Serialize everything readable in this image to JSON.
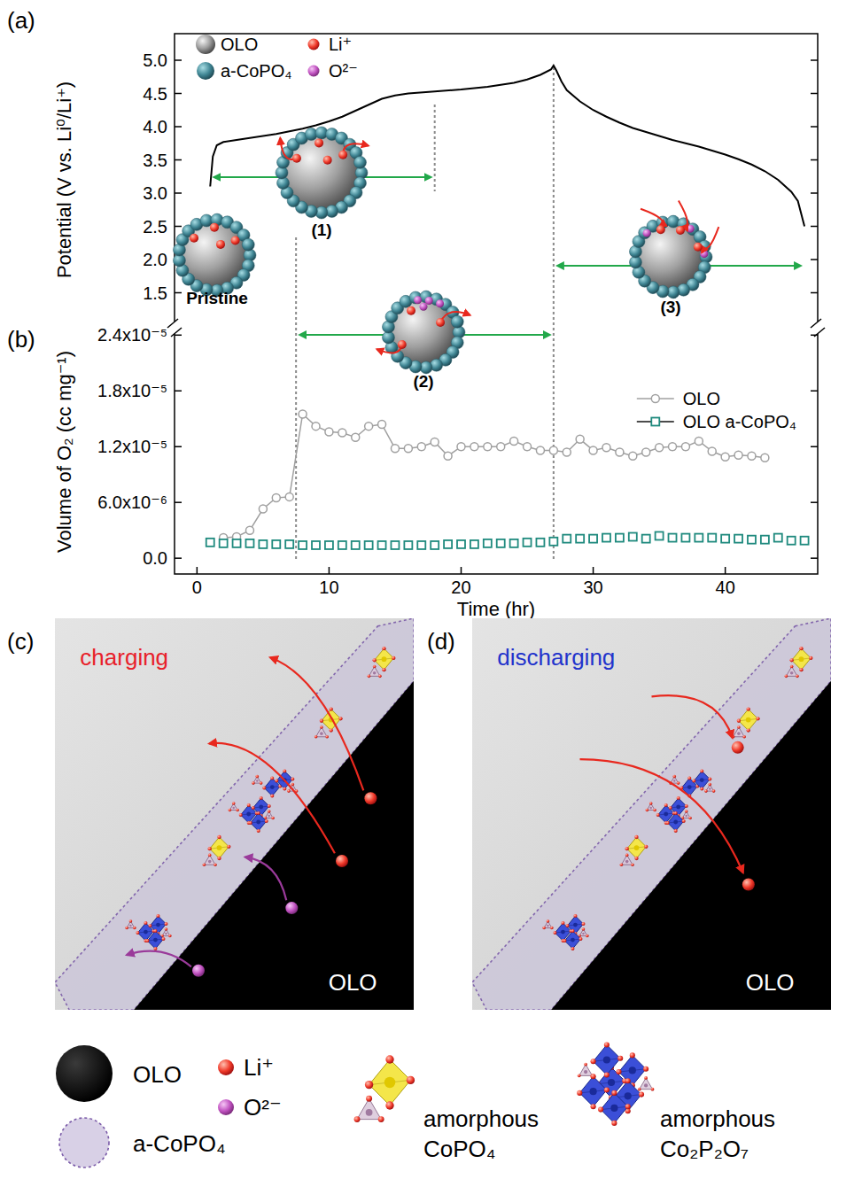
{
  "chart_data": [
    {
      "type": "line",
      "panel": "(a)",
      "ylabel": "Potential (V vs. Li⁰/Li⁺)",
      "x": [
        1.0,
        1.2,
        1.5,
        2,
        3,
        4,
        5,
        6,
        7,
        8,
        9,
        10,
        11,
        12,
        13,
        14,
        15,
        16,
        18,
        20,
        22,
        24,
        25,
        26,
        26.8,
        27.0,
        27.2,
        27.6,
        28,
        29,
        30,
        31,
        32,
        33,
        34,
        35,
        36,
        37,
        38,
        39,
        40,
        41,
        42,
        43,
        44,
        45,
        45.5,
        46
      ],
      "values": [
        3.1,
        3.55,
        3.72,
        3.77,
        3.8,
        3.83,
        3.86,
        3.89,
        3.93,
        3.97,
        4.02,
        4.08,
        4.15,
        4.24,
        4.33,
        4.42,
        4.47,
        4.5,
        4.53,
        4.56,
        4.6,
        4.66,
        4.71,
        4.78,
        4.86,
        4.92,
        4.85,
        4.68,
        4.55,
        4.38,
        4.25,
        4.15,
        4.06,
        3.98,
        3.92,
        3.86,
        3.8,
        3.75,
        3.7,
        3.64,
        3.58,
        3.51,
        3.43,
        3.33,
        3.2,
        3.02,
        2.88,
        2.5
      ],
      "color": "#000000",
      "xlim": [
        -1.7,
        47
      ],
      "ylim": [
        1.0,
        5.4
      ],
      "yticks": [
        1.5,
        {
          "value": 2,
          "label": "2.0"
        },
        2.5,
        {
          "value": 3,
          "label": "3.0"
        },
        3.5,
        {
          "value": 4,
          "label": "4.0"
        },
        4.5,
        {
          "value": 5,
          "label": "5.0"
        }
      ],
      "tick_labels": "y",
      "stage_lines": [
        7.5,
        18,
        27
      ]
    },
    {
      "type": "line",
      "panel": "(b)",
      "ylabel": "Volume of O₂ (cc mg⁻¹)",
      "xlabel": "Time (hr)",
      "xlim": [
        -1.7,
        47
      ],
      "ylim": [
        -1.7e-06,
        2.46e-05
      ],
      "xticks": [
        0,
        10,
        20,
        30,
        40
      ],
      "yticks": [
        {
          "value": 0,
          "label": "0.0"
        },
        {
          "value": 6e-06,
          "label": "6.0x10⁻⁶"
        },
        {
          "value": 1.2e-05,
          "label": "1.2x10⁻⁵"
        },
        {
          "value": 1.8e-05,
          "label": "1.8x10⁻⁵"
        },
        {
          "value": 2.4e-05,
          "label": "2.4x10⁻⁵"
        }
      ],
      "legend": "right",
      "series": [
        {
          "name": "OLO",
          "color": "#a0a0a0",
          "marker": "circle",
          "line_style": "solid",
          "x": [
            2,
            3,
            4,
            5,
            6,
            7,
            8,
            9,
            10,
            11,
            12,
            13,
            14,
            15,
            16,
            17,
            18,
            19,
            20,
            21,
            22,
            23,
            24,
            25,
            26,
            27,
            28,
            29,
            30,
            31,
            32,
            33,
            34,
            35,
            36,
            37,
            38,
            39,
            40,
            41,
            42,
            43
          ],
          "values": [
            2.2e-06,
            2.3e-06,
            3e-06,
            5.3e-06,
            6.5e-06,
            6.6e-06,
            1.55e-05,
            1.42e-05,
            1.36e-05,
            1.35e-05,
            1.3e-05,
            1.42e-05,
            1.44e-05,
            1.18e-05,
            1.18e-05,
            1.2e-05,
            1.25e-05,
            1.1e-05,
            1.2e-05,
            1.2e-05,
            1.2e-05,
            1.2e-05,
            1.26e-05,
            1.2e-05,
            1.16e-05,
            1.16e-05,
            1.14e-05,
            1.28e-05,
            1.16e-05,
            1.19e-05,
            1.14e-05,
            1.1e-05,
            1.14e-05,
            1.19e-05,
            1.2e-05,
            1.2e-05,
            1.26e-05,
            1.15e-05,
            1.09e-05,
            1.11e-05,
            1.1e-05,
            1.08e-05
          ]
        },
        {
          "name": "OLO a-CoPO₄",
          "color": "#1f8a7e",
          "marker": "square",
          "line_style": "none",
          "x": [
            1,
            2,
            3,
            4,
            5,
            6,
            7,
            8,
            9,
            10,
            11,
            12,
            13,
            14,
            15,
            16,
            17,
            18,
            19,
            20,
            21,
            22,
            23,
            24,
            25,
            26,
            27,
            28,
            29,
            30,
            31,
            32,
            33,
            34,
            35,
            36,
            37,
            38,
            39,
            40,
            41,
            42,
            43,
            44,
            45,
            46
          ],
          "values": [
            1.7e-06,
            1.6e-06,
            1.6e-06,
            1.6e-06,
            1.5e-06,
            1.5e-06,
            1.5e-06,
            1.4e-06,
            1.4e-06,
            1.4e-06,
            1.4e-06,
            1.4e-06,
            1.4e-06,
            1.4e-06,
            1.4e-06,
            1.4e-06,
            1.4e-06,
            1.4e-06,
            1.5e-06,
            1.5e-06,
            1.5e-06,
            1.6e-06,
            1.6e-06,
            1.6e-06,
            1.7e-06,
            1.7e-06,
            1.8e-06,
            2.1e-06,
            2.1e-06,
            2.1e-06,
            2.2e-06,
            2.2e-06,
            2.3e-06,
            2.1e-06,
            2.4e-06,
            2.2e-06,
            2.2e-06,
            2.2e-06,
            2.2e-06,
            2.1e-06,
            2.1e-06,
            2e-06,
            2e-06,
            2.2e-06,
            1.9e-06,
            1.9e-06
          ]
        }
      ]
    }
  ],
  "schematic": {
    "legend": [
      {
        "label": "OLO"
      },
      {
        "label": "a-CoPO₄"
      },
      {
        "label": "Li⁺"
      },
      {
        "label": "O²⁻"
      }
    ],
    "stages": [
      {
        "label": "Pristine"
      },
      {
        "label": "(1)",
        "from": 1,
        "to": 18
      },
      {
        "label": "(2)",
        "from": 7.5,
        "to": 27
      },
      {
        "label": "(3)",
        "from": 27,
        "to": 46
      }
    ]
  },
  "micrographs": [
    {
      "panel": "(c)",
      "title": "charging",
      "color": "#e8202a",
      "region": "OLO"
    },
    {
      "panel": "(d)",
      "title": "discharging",
      "color": "#2233cc",
      "region": "OLO"
    }
  ],
  "key": [
    {
      "label": "OLO"
    },
    {
      "label": "a-CoPO₄"
    },
    {
      "label": "Li⁺"
    },
    {
      "label": "O²⁻"
    },
    {
      "label": "amorphous CoPO₄"
    },
    {
      "label": "amorphous Co₂P₂O₇"
    }
  ]
}
